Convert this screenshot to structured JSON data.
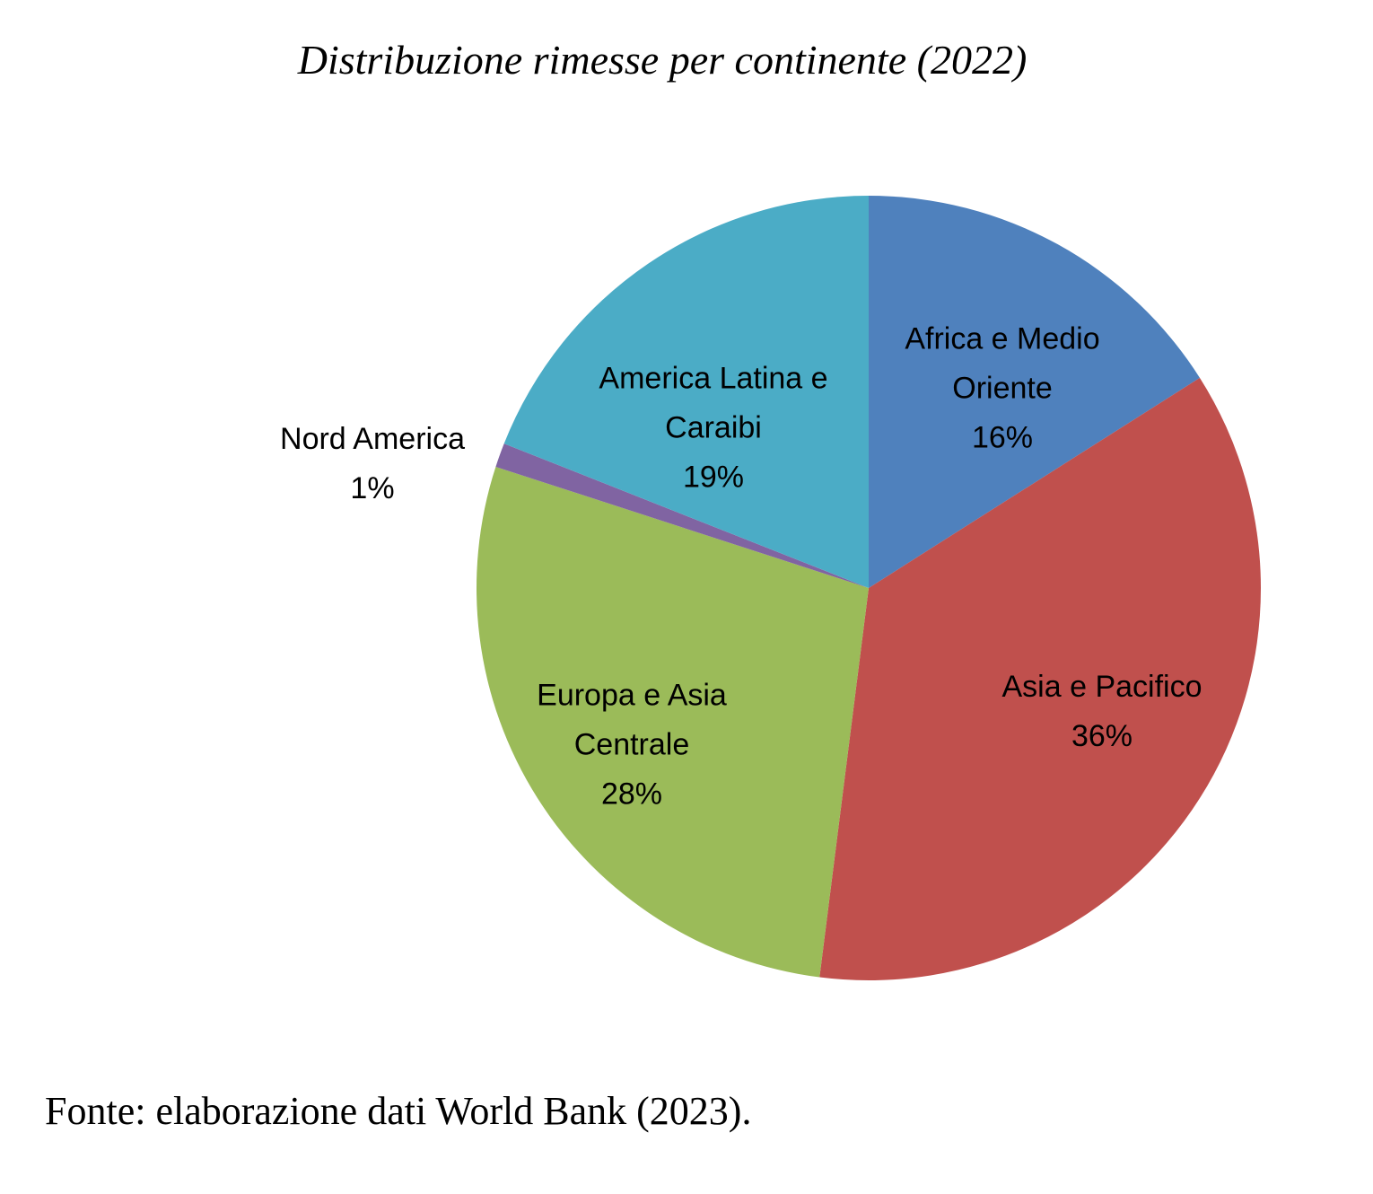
{
  "chart_data": {
    "type": "pie",
    "title": "Distribuzione rimesse per continente (2022)",
    "categories": [
      "Africa e Medio Oriente",
      "Asia e Pacifico",
      "Europa e Asia Centrale",
      "Nord America",
      "America Latina e Caraibi"
    ],
    "values": [
      16,
      36,
      28,
      1,
      19
    ],
    "value_labels": [
      "16%",
      "36%",
      "28%",
      "1%",
      "19%"
    ],
    "colors": [
      "#4f81bd",
      "#c0504d",
      "#9bbb59",
      "#8064a2",
      "#4bacc6"
    ]
  },
  "source": "Fonte: elaborazione dati World Bank (2023)."
}
